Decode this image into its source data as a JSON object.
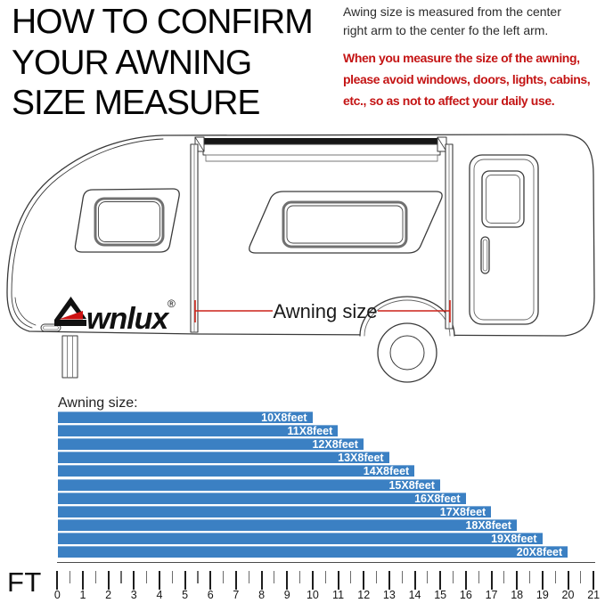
{
  "header": {
    "title": "HOW TO CONFIRM\nYOUR AWNING\nSIZE MEASURE",
    "note": "Awing size is measured from the center\nright arm to the center fo the left arm.",
    "warning": "When you measure the size of the awning,\nplease avoid windows, doors, lights, cabins,\netc., so as not to affect your daily use.",
    "warning_color": "#c41414"
  },
  "diagram": {
    "brand": "Awnlux",
    "brand_text_part": "wnlux",
    "brand_registered_mark": "®",
    "brand_accent_color": "#cc1111",
    "measure_label": "Awning size",
    "measure_line_color": "#cc2218"
  },
  "chart": {
    "heading": "Awning size:"
  },
  "chart_data": {
    "type": "bar",
    "orientation": "horizontal",
    "title": "Awning size:",
    "categories": [
      "10X8feet",
      "11X8feet",
      "12X8feet",
      "13X8feet",
      "14X8feet",
      "15X8feet",
      "16X8feet",
      "17X8feet",
      "18X8feet",
      "19X8feet",
      "20X8feet"
    ],
    "values": [
      10,
      11,
      12,
      13,
      14,
      15,
      16,
      17,
      18,
      19,
      20
    ],
    "value_meaning": "bar length in feet on the FT ruler; each NX8feet bar spans 0 to N feet",
    "bar_color": "#3b80c3",
    "bar_label_color": "#ffffff",
    "grid": false,
    "x_axis": {
      "label": "FT",
      "min": 0,
      "max": 21,
      "major_tick_interval": 1,
      "minor_tick_interval": 0.5,
      "tick_labels": [
        "0",
        "1",
        "2",
        "3",
        "4",
        "5",
        "6",
        "7",
        "8",
        "9",
        "10",
        "11",
        "12",
        "13",
        "14",
        "15",
        "16",
        "17",
        "18",
        "19",
        "20",
        "21"
      ]
    }
  }
}
